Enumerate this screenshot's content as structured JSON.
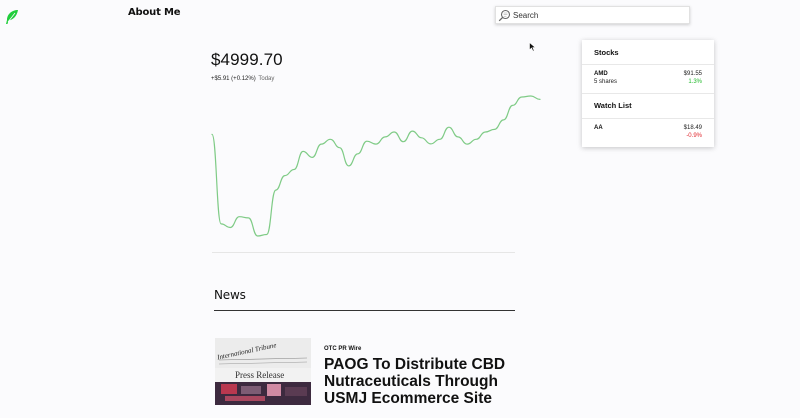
{
  "header": {
    "logo_icon": "feather-leaf-icon",
    "nav_about": "About Me",
    "search": {
      "placeholder": "Search",
      "value": "",
      "icon": "search-magnifier-icon"
    }
  },
  "portfolio": {
    "value": "$4999.70",
    "change": "+$5.91 (+0.12%)",
    "change_period": "Today"
  },
  "chart_data": {
    "type": "line",
    "line_color": "#7fcb86",
    "y_values": [
      4997.0,
      4960.0,
      4958.5,
      4963.0,
      4962.5,
      4955.0,
      4955.6,
      4974.0,
      4980.0,
      4982.5,
      4990.0,
      4987.5,
      4993.0,
      4995.0,
      4991.5,
      4984.0,
      4989.0,
      4994.2,
      4993.0,
      4996.0,
      4998.0,
      4994.0,
      4998.4,
      4995.6,
      4993.1,
      4995.0,
      5000.0,
      4996.0,
      4993.0,
      4995.0,
      4998.0,
      4999.1,
      5003.0,
      5009.0,
      5012.5,
      5012.9,
      5011.5
    ],
    "grid": false,
    "axes_visible": false
  },
  "news": {
    "section_title": "News",
    "items": [
      {
        "source": "OTC PR Wire",
        "headline": "PAOG To Distribute CBD Nutraceuticals Through USMJ Ecommerce Site",
        "thumb_caption": "Press Release",
        "thumb_paper_text": "International Tribune"
      }
    ]
  },
  "sidebar": {
    "stocks_title": "Stocks",
    "stocks": [
      {
        "symbol": "AMD",
        "shares": "5 shares",
        "price": "$91.55",
        "change": "1.3%",
        "direction": "up"
      }
    ],
    "watchlist_title": "Watch List",
    "watchlist": [
      {
        "symbol": "AA",
        "price": "$18.49",
        "change": "-0.9%",
        "direction": "down"
      }
    ]
  },
  "colors": {
    "positive": "#21ba2b",
    "negative": "#e0262c",
    "logo": "#21ce3c"
  }
}
